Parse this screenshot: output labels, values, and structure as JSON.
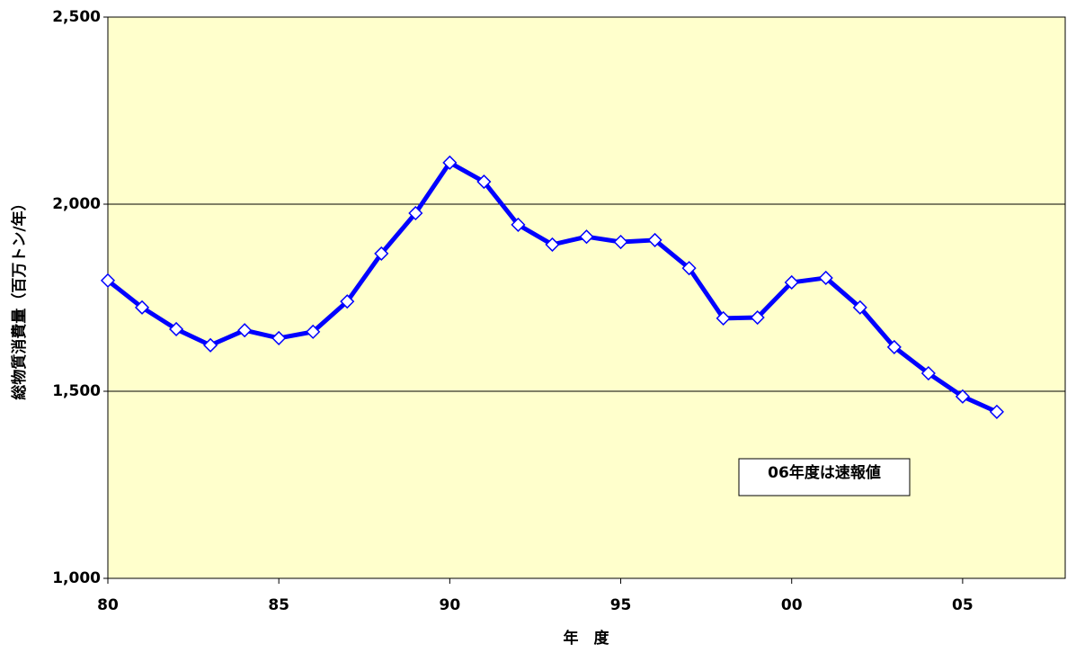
{
  "chart_data": {
    "type": "line",
    "x_label": "年　度",
    "y_label": "総物質消費量（百万トン/年）",
    "annotation": "06年度は速報値",
    "x": [
      1980,
      1981,
      1982,
      1983,
      1984,
      1985,
      1986,
      1987,
      1988,
      1989,
      1990,
      1991,
      1992,
      1993,
      1994,
      1995,
      1996,
      1997,
      1998,
      1999,
      2000,
      2001,
      2002,
      2003,
      2004,
      2005,
      2006
    ],
    "series": [
      {
        "color": "#0000ff",
        "marker_fill": "#ffffff",
        "values": [
          1796,
          1724,
          1666,
          1623,
          1663,
          1642,
          1659,
          1740,
          1868,
          1976,
          2111,
          2060,
          1945,
          1892,
          1913,
          1899,
          1904,
          1829,
          1695,
          1697,
          1791,
          1803,
          1724,
          1618,
          1548,
          1486,
          1445
        ]
      }
    ],
    "xlim": [
      1980,
      2008
    ],
    "xticks": [
      {
        "value": 1980,
        "label": "80"
      },
      {
        "value": 1985,
        "label": "85"
      },
      {
        "value": 1990,
        "label": "90"
      },
      {
        "value": 1995,
        "label": "95"
      },
      {
        "value": 2000,
        "label": "00"
      },
      {
        "value": 2005,
        "label": "05"
      }
    ],
    "ylim": [
      1000,
      2500
    ],
    "yticks": [
      {
        "value": 1000,
        "label": "1,000"
      },
      {
        "value": 1500,
        "label": "1,500"
      },
      {
        "value": 2000,
        "label": "2,000"
      },
      {
        "value": 2500,
        "label": "2,500"
      }
    ],
    "grid": true,
    "plot_background": "#ffffcc"
  }
}
